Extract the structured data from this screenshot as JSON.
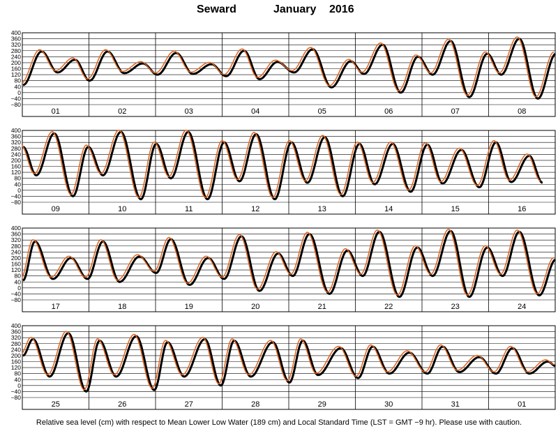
{
  "title": {
    "station": "Seward",
    "month": "January",
    "year": "2016"
  },
  "caption": "Relative sea level (cm) with respect to Mean Lower Low Water (189 cm) and Local Standard Time (LST = GMT −9 hr). Please use with caution.",
  "colors": {
    "observed": "#000000",
    "predicted": "#e0641e",
    "grid": "#000000"
  },
  "chart_data": {
    "type": "line",
    "ylim": [
      -80,
      400
    ],
    "y_ticks": [
      -80,
      -40,
      0,
      40,
      80,
      120,
      160,
      200,
      240,
      280,
      320,
      360,
      400
    ],
    "y_tick_labels": [
      "−80",
      "−40",
      "0",
      "40",
      "80",
      "120",
      "160",
      "200",
      "240",
      "280",
      "320",
      "360",
      "400"
    ],
    "panels": [
      {
        "days": [
          "01",
          "02",
          "03",
          "04",
          "05",
          "06",
          "07",
          "08"
        ],
        "extrema": [
          [
            0.0,
            50
          ],
          [
            0.28,
            275
          ],
          [
            0.52,
            135
          ],
          [
            0.78,
            220
          ],
          [
            1.0,
            80
          ],
          [
            1.27,
            275
          ],
          [
            1.52,
            130
          ],
          [
            1.8,
            195
          ],
          [
            2.02,
            120
          ],
          [
            2.3,
            265
          ],
          [
            2.55,
            125
          ],
          [
            2.83,
            190
          ],
          [
            3.05,
            110
          ],
          [
            3.32,
            280
          ],
          [
            3.55,
            90
          ],
          [
            3.82,
            205
          ],
          [
            4.07,
            135
          ],
          [
            4.35,
            290
          ],
          [
            4.63,
            35
          ],
          [
            4.92,
            210
          ],
          [
            5.12,
            125
          ],
          [
            5.4,
            320
          ],
          [
            5.67,
            0
          ],
          [
            5.93,
            240
          ],
          [
            6.15,
            120
          ],
          [
            6.42,
            345
          ],
          [
            6.7,
            -30
          ],
          [
            6.97,
            260
          ],
          [
            7.18,
            120
          ],
          [
            7.45,
            360
          ],
          [
            7.73,
            -40
          ],
          [
            8.0,
            260
          ]
        ]
      },
      {
        "days": [
          "09",
          "10",
          "11",
          "12",
          "13",
          "14",
          "15",
          "16"
        ],
        "extrema": [
          [
            0.0,
            290
          ],
          [
            0.2,
            100
          ],
          [
            0.47,
            380
          ],
          [
            0.75,
            -40
          ],
          [
            0.98,
            290
          ],
          [
            1.2,
            100
          ],
          [
            1.47,
            390
          ],
          [
            1.77,
            -60
          ],
          [
            2.0,
            310
          ],
          [
            2.22,
            80
          ],
          [
            2.48,
            390
          ],
          [
            2.77,
            -60
          ],
          [
            3.02,
            320
          ],
          [
            3.25,
            60
          ],
          [
            3.5,
            375
          ],
          [
            3.78,
            -60
          ],
          [
            4.03,
            320
          ],
          [
            4.27,
            50
          ],
          [
            4.53,
            355
          ],
          [
            4.8,
            -40
          ],
          [
            5.05,
            310
          ],
          [
            5.28,
            40
          ],
          [
            5.55,
            310
          ],
          [
            5.82,
            -10
          ],
          [
            6.07,
            305
          ],
          [
            6.3,
            45
          ],
          [
            6.58,
            270
          ],
          [
            6.85,
            20
          ],
          [
            7.1,
            320
          ],
          [
            7.33,
            55
          ],
          [
            7.6,
            230
          ],
          [
            7.8,
            50
          ]
        ]
      },
      {
        "days": [
          "17",
          "18",
          "19",
          "20",
          "21",
          "22",
          "23",
          "24"
        ],
        "extrema": [
          [
            0.0,
            50
          ],
          [
            0.18,
            310
          ],
          [
            0.45,
            60
          ],
          [
            0.72,
            200
          ],
          [
            0.97,
            60
          ],
          [
            1.2,
            310
          ],
          [
            1.45,
            40
          ],
          [
            1.75,
            210
          ],
          [
            2.0,
            100
          ],
          [
            2.22,
            325
          ],
          [
            2.5,
            20
          ],
          [
            2.78,
            200
          ],
          [
            3.02,
            60
          ],
          [
            3.28,
            345
          ],
          [
            3.55,
            -20
          ],
          [
            3.83,
            230
          ],
          [
            4.05,
            80
          ],
          [
            4.3,
            360
          ],
          [
            4.6,
            -40
          ],
          [
            4.87,
            250
          ],
          [
            5.1,
            80
          ],
          [
            5.35,
            375
          ],
          [
            5.65,
            -60
          ],
          [
            5.92,
            270
          ],
          [
            6.15,
            80
          ],
          [
            6.42,
            380
          ],
          [
            6.7,
            -60
          ],
          [
            6.97,
            270
          ],
          [
            7.2,
            80
          ],
          [
            7.45,
            375
          ],
          [
            7.75,
            -50
          ],
          [
            8.0,
            190
          ]
        ]
      },
      {
        "days": [
          "25",
          "26",
          "27",
          "28",
          "29",
          "30",
          "31",
          "01"
        ],
        "extrema": [
          [
            0.0,
            200
          ],
          [
            0.15,
            310
          ],
          [
            0.4,
            60
          ],
          [
            0.68,
            350
          ],
          [
            0.95,
            -40
          ],
          [
            1.15,
            300
          ],
          [
            1.4,
            60
          ],
          [
            1.7,
            330
          ],
          [
            1.97,
            -30
          ],
          [
            2.17,
            290
          ],
          [
            2.42,
            60
          ],
          [
            2.73,
            310
          ],
          [
            2.97,
            0
          ],
          [
            3.17,
            300
          ],
          [
            3.42,
            60
          ],
          [
            3.75,
            290
          ],
          [
            4.0,
            20
          ],
          [
            4.2,
            300
          ],
          [
            4.43,
            70
          ],
          [
            4.77,
            250
          ],
          [
            5.03,
            50
          ],
          [
            5.25,
            260
          ],
          [
            5.5,
            80
          ],
          [
            5.8,
            220
          ],
          [
            6.07,
            80
          ],
          [
            6.3,
            260
          ],
          [
            6.55,
            90
          ],
          [
            6.85,
            190
          ],
          [
            7.1,
            80
          ],
          [
            7.35,
            250
          ],
          [
            7.6,
            80
          ],
          [
            7.88,
            160
          ],
          [
            8.0,
            130
          ]
        ]
      }
    ]
  }
}
